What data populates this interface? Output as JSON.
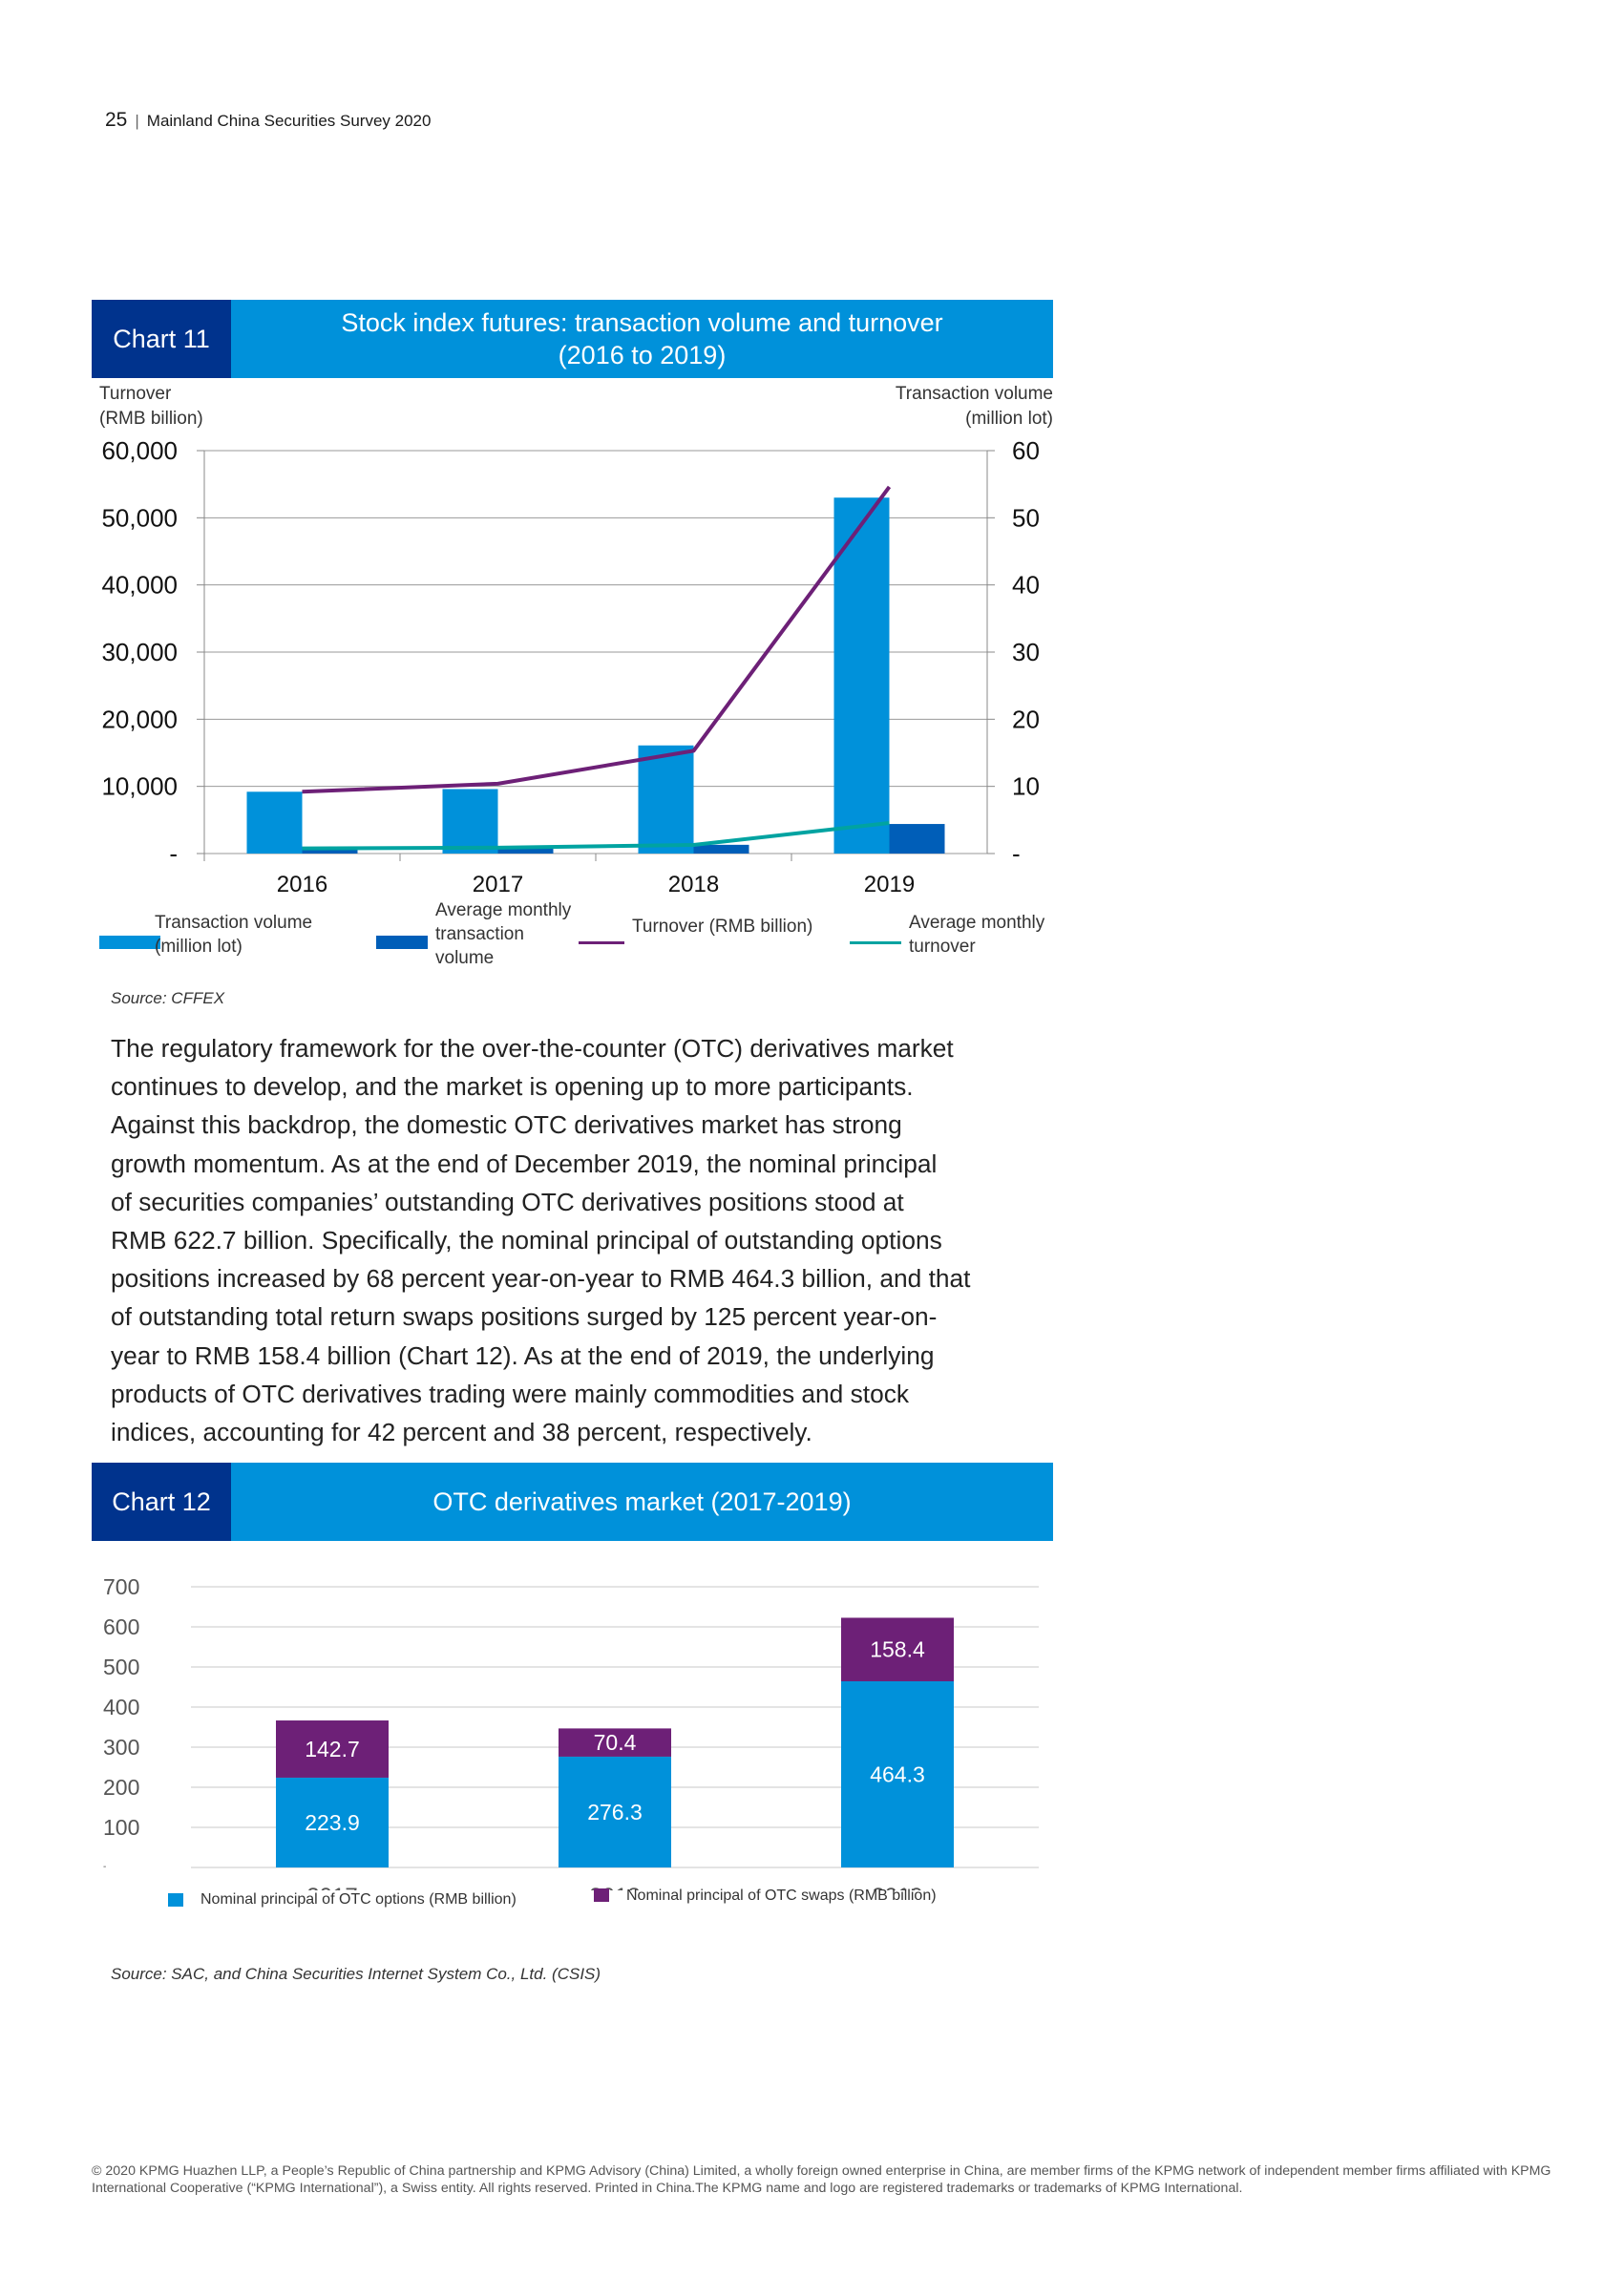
{
  "header": {
    "page_number": "25",
    "separator": "|",
    "title": "Mainland China Securities Survey 2020"
  },
  "chart11": {
    "tag": "Chart 11",
    "title_line1": "Stock index futures: transaction volume and turnover",
    "title_line2": "(2016 to 2019)",
    "left_axis_title_line1": "Turnover",
    "left_axis_title_line2": "(RMB billion)",
    "right_axis_title_line1": "Transaction volume",
    "right_axis_title_line2": "(million lot)",
    "left_ticks": [
      "60,000",
      "50,000",
      "40,000",
      "30,000",
      "20,000",
      "10,000",
      "-"
    ],
    "right_ticks": [
      "60",
      "50",
      "40",
      "30",
      "20",
      "10",
      "-"
    ],
    "legend": {
      "transaction_volume_line1": "Transaction volume",
      "transaction_volume_line2": "(million lot)",
      "avg_monthly_volume_line1": "Average monthly",
      "avg_monthly_volume_line2": "transaction",
      "avg_monthly_volume_line3": "volume",
      "turnover": "Turnover (RMB billion)",
      "avg_monthly_turnover_line1": "Average monthly",
      "avg_monthly_turnover_line2": "turnover"
    },
    "source": "Source: CFFEX"
  },
  "paragraph": [
    "The regulatory framework for the over-the-counter (OTC) derivatives market",
    "continues to develop, and the market is opening up to more participants.",
    "Against this backdrop, the domestic OTC derivatives market has strong",
    "growth momentum. As at the end of December 2019, the nominal principal",
    "of securities companies’ outstanding OTC derivatives positions stood at",
    "RMB 622.7 billion. Specifically, the nominal principal of outstanding options",
    "positions increased by 68 percent year-on-year to RMB 464.3 billion, and that",
    "of outstanding total return swaps positions surged by 125 percent year-on-",
    "year to RMB 158.4 billion (Chart 12). As at the end of 2019, the underlying",
    "products of OTC derivatives trading were mainly commodities and stock",
    "indices, accounting for 42 percent and 38 percent, respectively."
  ],
  "chart12": {
    "tag": "Chart 12",
    "title": "OTC derivatives market (2017-2019)",
    "y_ticks": [
      "700",
      "600",
      "500",
      "400",
      "300",
      "200",
      "100",
      "-"
    ],
    "legend_options": "Nominal principal of OTC options (RMB billion)",
    "legend_swaps": "Nominal principal of OTC swaps (RMB billion)",
    "source": "Source: SAC, and China Securities Internet System Co., Ltd. (CSIS)"
  },
  "footer": "© 2020 KPMG Huazhen LLP, a People’s Republic of China partnership and KPMG Advisory (China) Limited, a wholly foreign owned enterprise in China, are member firms of the KPMG network of independent member firms affiliated with KPMG International Cooperative (“KPMG International”), a Swiss entity. All rights reserved. Printed in China.The KPMG name and logo are registered trademarks or trademarks of KPMG International.",
  "chart_data": [
    {
      "type": "bar",
      "title": "Stock index futures: transaction volume and turnover (2016 to 2019)",
      "categories": [
        "2016",
        "2017",
        "2018",
        "2019"
      ],
      "series": [
        {
          "name": "Transaction volume (million lot)",
          "chart": "bar",
          "axis": "right",
          "values": [
            9.2,
            9.6,
            16.1,
            53.0
          ],
          "color": "#0091da"
        },
        {
          "name": "Average monthly transaction volume",
          "chart": "bar",
          "axis": "right",
          "values": [
            0.8,
            0.8,
            1.3,
            4.4
          ],
          "color": "#005eb8"
        },
        {
          "name": "Turnover (RMB billion)",
          "chart": "line",
          "axis": "left",
          "values": [
            9200,
            10400,
            15300,
            54600
          ],
          "color": "#6d2077"
        },
        {
          "name": "Average monthly turnover",
          "chart": "line",
          "axis": "left",
          "values": [
            770,
            870,
            1280,
            4550
          ],
          "color": "#00a3a1"
        }
      ],
      "ylabel_left": "Turnover (RMB billion)",
      "ylabel_right": "Transaction volume (million lot)",
      "ylim_left": [
        0,
        60000
      ],
      "ylim_right": [
        0,
        60
      ],
      "grid": true,
      "legend": "bottom"
    },
    {
      "type": "bar",
      "stacked": true,
      "title": "OTC derivatives market (2017-2019)",
      "categories": [
        "2017",
        "2018",
        "2019"
      ],
      "series": [
        {
          "name": "Nominal principal of OTC options (RMB billion)",
          "values": [
            223.9,
            276.3,
            464.3
          ],
          "labels": [
            "223.9",
            "276.3",
            "464.3"
          ],
          "color": "#0091da"
        },
        {
          "name": "Nominal principal of OTC swaps (RMB billion)",
          "values": [
            142.7,
            70.4,
            158.4
          ],
          "labels": [
            "142.7",
            "70.4",
            "158.4"
          ],
          "color": "#6d2077"
        }
      ],
      "ylim": [
        0,
        700
      ],
      "grid": true,
      "legend": "bottom"
    }
  ]
}
